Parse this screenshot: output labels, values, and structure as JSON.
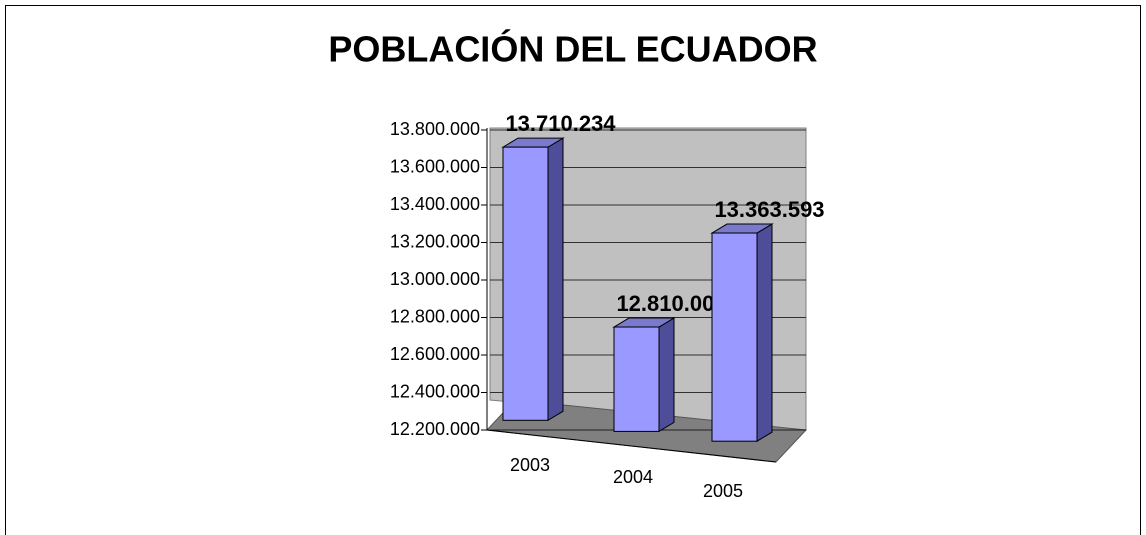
{
  "chart_data": {
    "type": "bar",
    "title": "POBLACIÓN DEL ECUADOR",
    "categories": [
      "2003",
      "2004",
      "2005"
    ],
    "values": [
      13710234,
      12810000,
      13363593
    ],
    "value_labels": [
      "13.710.234",
      "12.810.000",
      "13.363.593"
    ],
    "color": "#9999ff",
    "ylim": [
      12200000,
      13800000
    ],
    "yticks": [
      {
        "value": 12200000,
        "label": "12.200.000"
      },
      {
        "value": 12400000,
        "label": "12.400.000"
      },
      {
        "value": 12600000,
        "label": "12.600.000"
      },
      {
        "value": 12800000,
        "label": "12.800.000"
      },
      {
        "value": 13000000,
        "label": "13.000.000"
      },
      {
        "value": 13200000,
        "label": "13.200.000"
      },
      {
        "value": 13400000,
        "label": "13.400.000"
      },
      {
        "value": 13600000,
        "label": "13.600.000"
      },
      {
        "value": 13800000,
        "label": "13.800.000"
      }
    ],
    "grid": true
  }
}
